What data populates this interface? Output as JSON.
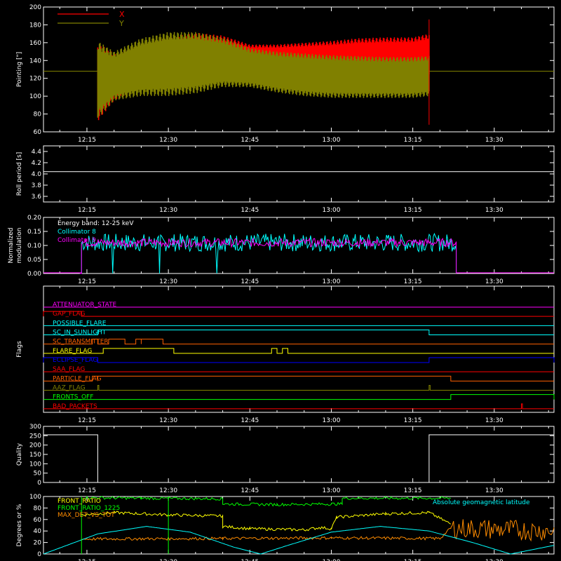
{
  "time_axis": {
    "start": "12:07",
    "end": "13:41",
    "ticks": [
      "12:15",
      "12:30",
      "12:45",
      "13:00",
      "13:15",
      "13:30"
    ]
  },
  "chart_data": [
    {
      "id": "pointing",
      "type": "line",
      "ylabel": "Pointing [\"]",
      "ylim": [
        60,
        200
      ],
      "yticks": [
        60,
        80,
        100,
        120,
        140,
        160,
        180,
        200
      ],
      "legend": "top-left",
      "baseline": 128,
      "series": [
        {
          "name": "X",
          "color": "#ff0000",
          "envelope": [
            {
              "t": "12:17",
              "upper": 160,
              "lower": 72
            },
            {
              "t": "12:20",
              "upper": 148,
              "lower": 95
            },
            {
              "t": "12:25",
              "upper": 158,
              "lower": 108
            },
            {
              "t": "12:30",
              "upper": 167,
              "lower": 112
            },
            {
              "t": "12:35",
              "upper": 171,
              "lower": 114
            },
            {
              "t": "12:40",
              "upper": 168,
              "lower": 118
            },
            {
              "t": "12:45",
              "upper": 158,
              "lower": 128
            },
            {
              "t": "12:50",
              "upper": 158,
              "lower": 127
            },
            {
              "t": "12:55",
              "upper": 160,
              "lower": 124
            },
            {
              "t": "13:00",
              "upper": 162,
              "lower": 121
            },
            {
              "t": "13:05",
              "upper": 165,
              "lower": 120
            },
            {
              "t": "13:10",
              "upper": 166,
              "lower": 119
            },
            {
              "t": "13:15",
              "upper": 166,
              "lower": 120
            },
            {
              "t": "13:18",
              "upper": 170,
              "lower": 120
            }
          ]
        },
        {
          "name": "Y",
          "color": "#808000",
          "envelope": [
            {
              "t": "12:17",
              "upper": 162,
              "lower": 75
            },
            {
              "t": "12:20",
              "upper": 150,
              "lower": 95
            },
            {
              "t": "12:25",
              "upper": 165,
              "lower": 100
            },
            {
              "t": "12:30",
              "upper": 172,
              "lower": 100
            },
            {
              "t": "12:35",
              "upper": 172,
              "lower": 103
            },
            {
              "t": "12:40",
              "upper": 166,
              "lower": 110
            },
            {
              "t": "12:45",
              "upper": 154,
              "lower": 110
            },
            {
              "t": "12:50",
              "upper": 150,
              "lower": 104
            },
            {
              "t": "12:55",
              "upper": 148,
              "lower": 100
            },
            {
              "t": "13:00",
              "upper": 146,
              "lower": 98
            },
            {
              "t": "13:05",
              "upper": 145,
              "lower": 98
            },
            {
              "t": "13:10",
              "upper": 144,
              "lower": 98
            },
            {
              "t": "13:15",
              "upper": 144,
              "lower": 98
            },
            {
              "t": "13:18",
              "upper": 145,
              "lower": 100
            }
          ]
        }
      ]
    },
    {
      "id": "roll",
      "type": "line",
      "ylabel": "Roll period [s]",
      "ylim": [
        3.5,
        4.5
      ],
      "yticks": [
        3.6,
        3.8,
        4.0,
        4.2,
        4.4
      ],
      "series": [
        {
          "name": "",
          "color": "#ffffff",
          "constant": 4.04
        }
      ]
    },
    {
      "id": "modulation",
      "type": "line",
      "ylabel": "Normalized modulation",
      "ylim": [
        0,
        0.2
      ],
      "yticks": [
        0.0,
        0.05,
        0.1,
        0.15,
        0.2
      ],
      "annotation": "Energy band: 12-25 keV",
      "series": [
        {
          "name": "Collimator 8",
          "color": "#00ffff",
          "mean": 0.11,
          "spread": 0.02,
          "start": "12:14",
          "end": "13:23"
        },
        {
          "name": "Collimator 9",
          "color": "#ff00ff",
          "mean": 0.11,
          "spread": 0.015,
          "start": "12:14",
          "end": "13:23"
        }
      ]
    },
    {
      "id": "flags",
      "type": "line",
      "ylabel": "Flags",
      "series": [
        {
          "name": "ATTENUATOR_STATE",
          "color": "#ff00ff",
          "segments": []
        },
        {
          "name": "GAP_FLAG",
          "color": "#ff0000",
          "segments": [
            [
              "12:07",
              "12:14"
            ]
          ]
        },
        {
          "name": "POSSIBLE_FLARE",
          "color": "#00ffff",
          "segments": []
        },
        {
          "name": "SC_IN_SUNLIGHT",
          "color": "#00ffff",
          "segments": [
            [
              "12:17",
              "13:18"
            ]
          ]
        },
        {
          "name": "SC_TRANSMITTER",
          "color": "#ff6000",
          "segments": [
            [
              "12:16",
              "12:17"
            ],
            [
              "12:19",
              "12:22"
            ],
            [
              "12:24",
              "12:25"
            ],
            [
              "12:25",
              "12:29"
            ]
          ]
        },
        {
          "name": "FLARE_FLAG",
          "color": "#ffff00",
          "segments": [
            [
              "12:18",
              "12:31"
            ],
            [
              "12:49",
              "12:50"
            ],
            [
              "12:51",
              "12:52"
            ]
          ]
        },
        {
          "name": "ECLIPSE_FLAG",
          "color": "#0000ff",
          "segments": [
            [
              "12:07",
              "12:17"
            ],
            [
              "13:18",
              "13:41"
            ]
          ]
        },
        {
          "name": "SAA_FLAG",
          "color": "#ff0000",
          "segments": []
        },
        {
          "name": "PARTICLE_FLAG",
          "color": "#ff6000",
          "segments": [
            [
              "12:16",
              "12:17"
            ],
            [
              "12:17",
              "13:22"
            ]
          ]
        },
        {
          "name": "AAZ_FLAG",
          "color": "#808000",
          "segments": [
            [
              "12:17",
              "12:17"
            ],
            [
              "13:18",
              "13:18"
            ]
          ]
        },
        {
          "name": "FRONTS_OFF",
          "color": "#00ff00",
          "segments": [
            [
              "13:22",
              "13:41"
            ]
          ]
        },
        {
          "name": "BAD_PACKETS",
          "color": "#ff0000",
          "segments": [
            [
              "13:35",
              "13:35"
            ]
          ]
        }
      ]
    },
    {
      "id": "quality",
      "type": "line",
      "ylabel": "Quality",
      "ylim": [
        0,
        300
      ],
      "yticks": [
        0,
        50,
        100,
        150,
        200,
        250,
        300
      ],
      "series": [
        {
          "name": "",
          "color": "#ffffff",
          "points": [
            [
              "12:07",
              255
            ],
            [
              "12:17",
              255
            ],
            [
              "12:17",
              0
            ],
            [
              "13:18",
              0
            ],
            [
              "13:18",
              255
            ],
            [
              "13:41",
              255
            ]
          ]
        }
      ]
    },
    {
      "id": "rates",
      "type": "line",
      "ylabel": "Degrees or %",
      "ylim": [
        0,
        100
      ],
      "yticks": [
        0,
        20,
        40,
        60,
        80,
        100
      ],
      "annotation": "Absolute geomagnetic latitude",
      "series": [
        {
          "name": "FRONT_RATIO",
          "color": "#ffff00",
          "points": [
            [
              "12:14",
              68
            ],
            [
              "12:20",
              72
            ],
            [
              "12:30",
              68
            ],
            [
              "12:40",
              66
            ],
            [
              "12:40",
              48
            ],
            [
              "12:45",
              44
            ],
            [
              "12:55",
              42
            ],
            [
              "12:58",
              46
            ],
            [
              "13:00",
              44
            ],
            [
              "13:01",
              64
            ],
            [
              "13:10",
              70
            ],
            [
              "13:18",
              72
            ],
            [
              "13:22",
              52
            ]
          ]
        },
        {
          "name": "FRONT_RATIO_1225",
          "color": "#00ff00",
          "points": [
            [
              "12:14",
              98
            ],
            [
              "12:25",
              97
            ],
            [
              "12:40",
              96
            ],
            [
              "12:40",
              87
            ],
            [
              "12:50",
              86
            ],
            [
              "13:00",
              87
            ],
            [
              "13:02",
              87
            ],
            [
              "13:02",
              97
            ],
            [
              "13:22",
              97
            ]
          ]
        },
        {
          "name": "MAX_DET_VS_TOT",
          "color": "#ff8c00",
          "points": [
            [
              "12:14",
              26
            ],
            [
              "12:40",
              27
            ],
            [
              "13:00",
              28
            ],
            [
              "13:20",
              27
            ],
            [
              "13:22",
              45
            ],
            [
              "13:41",
              40
            ]
          ]
        },
        {
          "name": "Absolute geomagnetic latitude",
          "color": "#00ffff",
          "points": [
            [
              "12:07",
              0
            ],
            [
              "12:17",
              35
            ],
            [
              "12:26",
              48
            ],
            [
              "12:34",
              38
            ],
            [
              "12:42",
              12
            ],
            [
              "12:47",
              0
            ],
            [
              "12:52",
              15
            ],
            [
              "13:00",
              38
            ],
            [
              "13:09",
              48
            ],
            [
              "13:18",
              40
            ],
            [
              "13:26",
              20
            ],
            [
              "13:33",
              0
            ],
            [
              "13:41",
              15
            ]
          ]
        }
      ]
    }
  ]
}
